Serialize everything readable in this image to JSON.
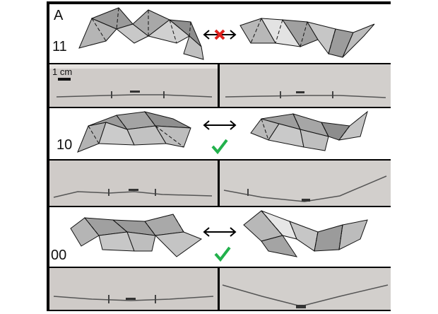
{
  "panel_label": "A",
  "scale_bar": {
    "text": "1 cm"
  },
  "rows": [
    {
      "code": "11",
      "compatible": false,
      "mark_icon": "red-cross-icon",
      "mark_color": "#e0211e"
    },
    {
      "code": "10",
      "compatible": true,
      "mark_icon": "green-check-icon",
      "mark_color": "#22b14c"
    },
    {
      "code": "00",
      "compatible": true,
      "mark_icon": "green-check-icon",
      "mark_color": "#22b14c"
    }
  ],
  "arrow_icon": "double-arrow-icon"
}
